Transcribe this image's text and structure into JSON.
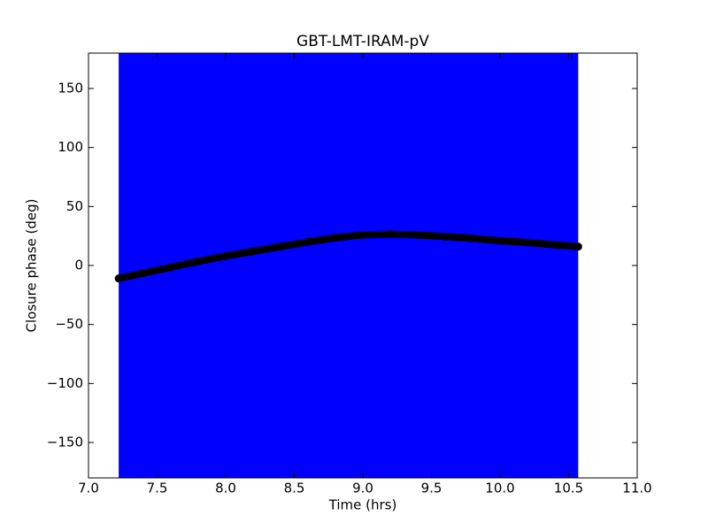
{
  "chart_data": {
    "type": "line",
    "title": "GBT-LMT-IRAM-pV",
    "xlabel": "Time (hrs)",
    "ylabel": "Closure phase (deg)",
    "band": {
      "x": [
        7.22,
        10.57
      ],
      "color": "#0000ff"
    },
    "x": [
      7.22,
      7.4,
      7.6,
      7.8,
      8.0,
      8.2,
      8.4,
      8.6,
      8.8,
      9.0,
      9.2,
      9.4,
      9.6,
      9.8,
      10.0,
      10.2,
      10.4,
      10.57
    ],
    "series": [
      {
        "color": "#000000",
        "values": [
          -11,
          -6.5,
          -1.5,
          3.5,
          8,
          12,
          16,
          20,
          23.5,
          26,
          26.5,
          26,
          24.5,
          23,
          21,
          19.5,
          17.5,
          16
        ]
      }
    ],
    "xlim": [
      7,
      11
    ],
    "ylim": [
      -180,
      180
    ],
    "xticks": [
      {
        "value": 7,
        "label": "7.0"
      },
      {
        "value": 7.5,
        "label": "7.5"
      },
      {
        "value": 8,
        "label": "8.0"
      },
      {
        "value": 8.5,
        "label": "8.5"
      },
      {
        "value": 9,
        "label": "9.0"
      },
      {
        "value": 9.5,
        "label": "9.5"
      },
      {
        "value": 10,
        "label": "10.0"
      },
      {
        "value": 10.5,
        "label": "10.5"
      },
      {
        "value": 11,
        "label": "11.0"
      }
    ],
    "yticks": [
      {
        "value": -150,
        "label": "−150"
      },
      {
        "value": -100,
        "label": "−100"
      },
      {
        "value": -50,
        "label": "−50"
      },
      0,
      50,
      100,
      150
    ]
  }
}
